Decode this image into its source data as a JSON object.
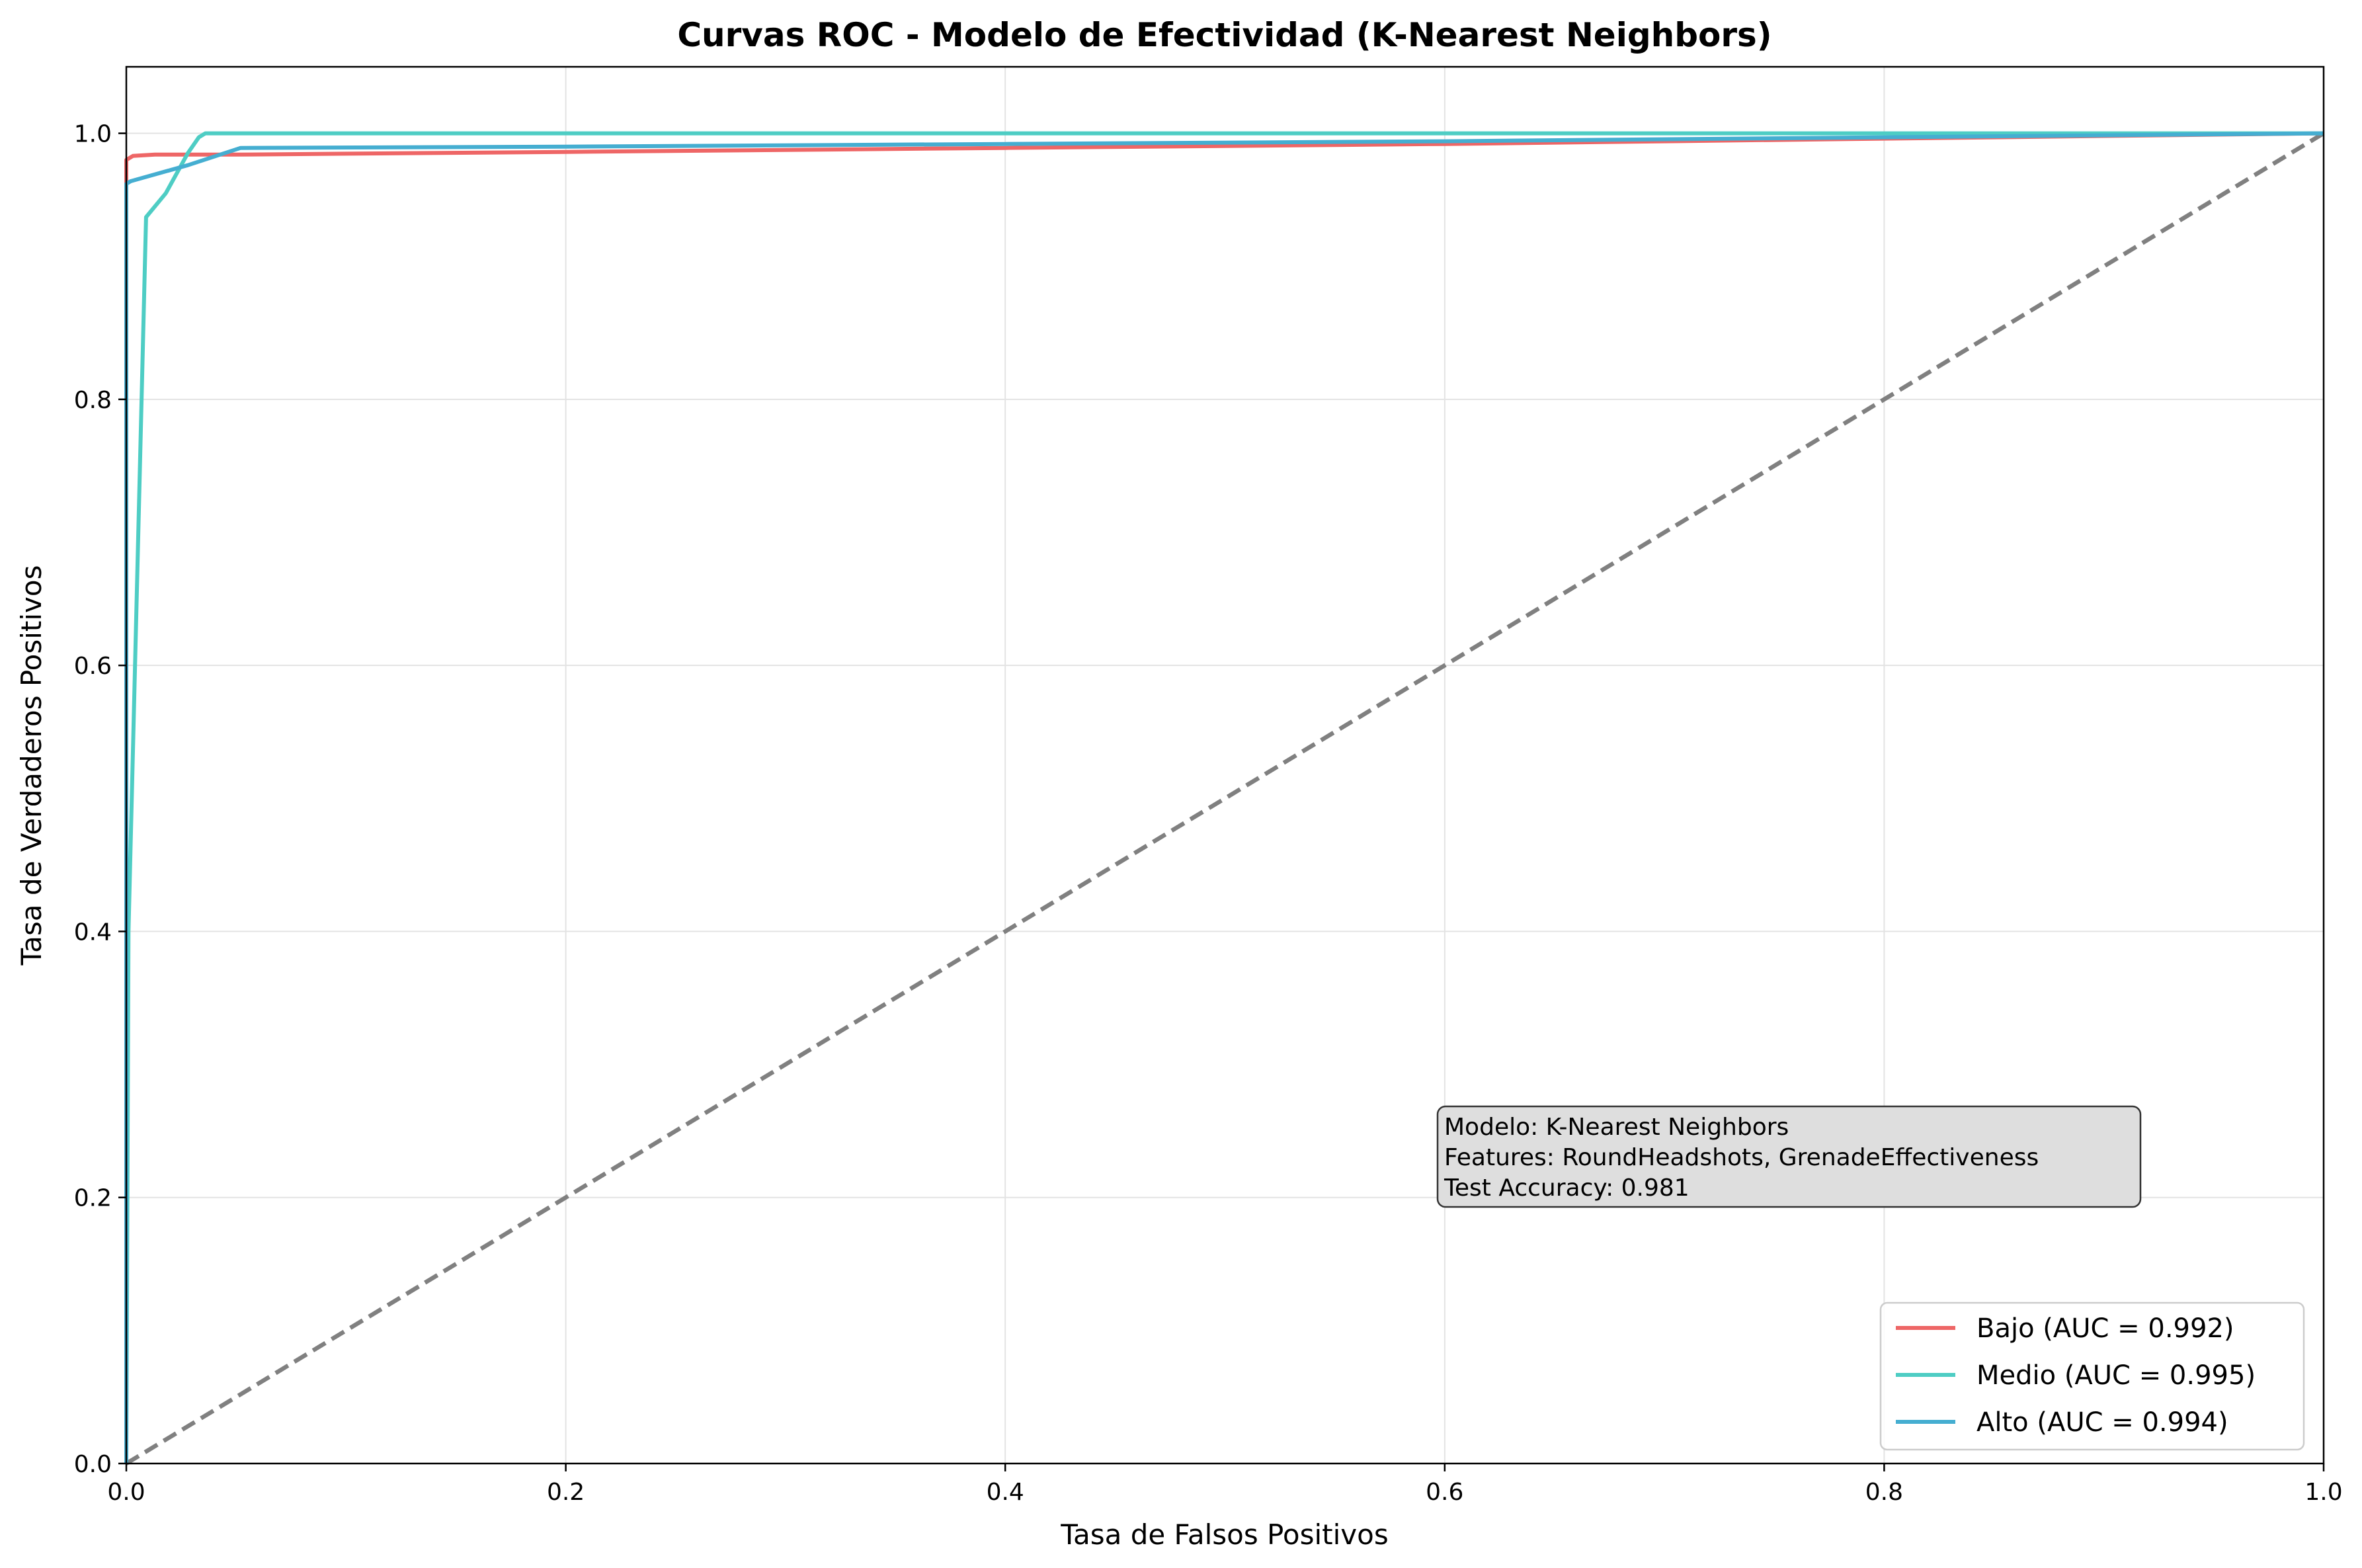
{
  "chart_data": {
    "type": "line",
    "title": "Curvas ROC - Modelo de Efectividad (K-Nearest Neighbors)",
    "xlabel": "Tasa de Falsos Positivos",
    "ylabel": "Tasa de Verdaderos Positivos",
    "xlim": [
      0.0,
      1.0
    ],
    "ylim": [
      0.0,
      1.05
    ],
    "xticks": [
      "0.0",
      "0.2",
      "0.4",
      "0.6",
      "0.8",
      "1.0"
    ],
    "yticks": [
      "0.0",
      "0.2",
      "0.4",
      "0.6",
      "0.8",
      "1.0"
    ],
    "grid": true,
    "legend_position": "lower-right",
    "series": [
      {
        "name": "Bajo (AUC = 0.992)",
        "color": "#ee6666",
        "x": [
          0.0,
          0.0,
          0.003,
          0.013,
          0.05,
          0.2,
          0.4,
          0.6,
          0.8,
          1.0
        ],
        "y": [
          0.0,
          0.98,
          0.983,
          0.984,
          0.984,
          0.986,
          0.989,
          0.992,
          0.996,
          1.0
        ]
      },
      {
        "name": "Medio (AUC = 0.995)",
        "color": "#4ecdc4",
        "x": [
          0.0,
          0.001,
          0.009,
          0.018,
          0.028,
          0.033,
          0.036,
          0.1,
          0.5,
          1.0
        ],
        "y": [
          0.0,
          0.4,
          0.937,
          0.955,
          0.985,
          0.997,
          1.0,
          1.0,
          1.0,
          1.0
        ]
      },
      {
        "name": "Alto (AUC = 0.994)",
        "color": "#45aed1",
        "x": [
          0.0,
          0.0,
          0.002,
          0.028,
          0.052,
          0.2,
          0.4,
          0.6,
          0.8,
          1.0
        ],
        "y": [
          0.0,
          0.962,
          0.964,
          0.976,
          0.989,
          0.99,
          0.992,
          0.994,
          0.997,
          1.0
        ]
      }
    ],
    "reference_line": {
      "x": [
        0.0,
        1.0
      ],
      "y": [
        0.0,
        1.0
      ],
      "color": "#808080",
      "style": "dashed"
    },
    "annotation": {
      "lines": [
        "Modelo: K-Nearest Neighbors",
        "Features: RoundHeadshots, GrenadeEffectiveness",
        "Test Accuracy: 0.981"
      ]
    }
  }
}
